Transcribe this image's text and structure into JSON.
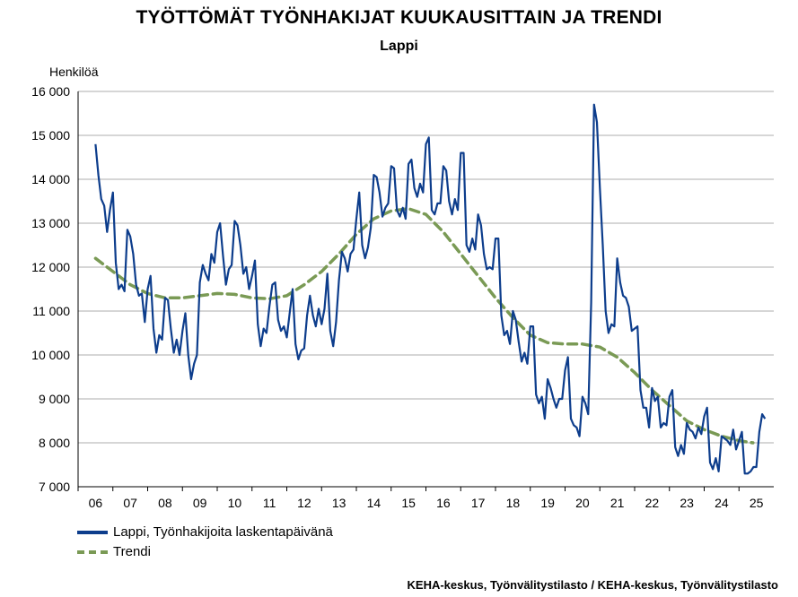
{
  "colors": {
    "series": "#0d3d8c",
    "trend": "#7a9a55",
    "grid": "#c8c8c8",
    "axis": "#000000"
  },
  "chart_data": {
    "type": "line",
    "title": "TYÖTTÖMÄT TYÖNHAKIJAT KUUKAUSITTAIN JA TRENDI",
    "subtitle": "Lappi",
    "ylabel": "Henkilöä",
    "xlabel": "",
    "ylim": [
      7000,
      16000
    ],
    "y_ticks": [
      7000,
      8000,
      9000,
      10000,
      11000,
      12000,
      13000,
      14000,
      15000,
      16000
    ],
    "y_tick_labels": [
      "7 000",
      "8 000",
      "9 000",
      "10 000",
      "11 000",
      "12 000",
      "13 000",
      "14 000",
      "15 000",
      "16 000"
    ],
    "x_tick_labels": [
      "06",
      "07",
      "08",
      "09",
      "10",
      "11",
      "12",
      "13",
      "14",
      "15",
      "16",
      "17",
      "18",
      "19",
      "20",
      "21",
      "22",
      "23",
      "24",
      "25"
    ],
    "grid": "horizontal",
    "legend_position": "bottom-left",
    "series": [
      {
        "name": "Lappi, Työnhakijoita laskentapäivänä",
        "start_year": 2006,
        "start_month": 1,
        "values": [
          14800,
          14100,
          13550,
          13400,
          12800,
          13300,
          13700,
          12100,
          11500,
          11600,
          11450,
          12850,
          12700,
          12300,
          11600,
          11350,
          11400,
          10750,
          11500,
          11800,
          10600,
          10050,
          10450,
          10350,
          11300,
          11250,
          10600,
          10050,
          10350,
          10000,
          10550,
          10950,
          10000,
          9450,
          9800,
          10000,
          11650,
          12050,
          11850,
          11700,
          12300,
          12100,
          12800,
          13000,
          12250,
          11600,
          11950,
          12050,
          13050,
          12950,
          12500,
          11850,
          12000,
          11500,
          11800,
          12150,
          10700,
          10200,
          10600,
          10500,
          11100,
          11600,
          11650,
          10800,
          10550,
          10650,
          10400,
          10950,
          11500,
          10250,
          9900,
          10100,
          10150,
          10900,
          11350,
          10900,
          10650,
          11050,
          10700,
          11050,
          11850,
          10550,
          10200,
          10750,
          11700,
          12350,
          12200,
          11900,
          12300,
          12400,
          13100,
          13700,
          12500,
          12200,
          12450,
          12900,
          14100,
          14050,
          13700,
          13150,
          13350,
          13450,
          14300,
          14250,
          13300,
          13150,
          13350,
          13100,
          14350,
          14450,
          13800,
          13600,
          13900,
          13700,
          14800,
          14950,
          13300,
          13200,
          13450,
          13450,
          14300,
          14200,
          13500,
          13200,
          13550,
          13300,
          14600,
          14600,
          12500,
          12350,
          12650,
          12400,
          13200,
          12950,
          12300,
          11950,
          12000,
          11950,
          12650,
          12650,
          10900,
          10450,
          10550,
          10250,
          11000,
          10800,
          10300,
          9850,
          10050,
          9800,
          10650,
          10650,
          9100,
          8900,
          9050,
          8550,
          9450,
          9250,
          9000,
          8800,
          9000,
          9000,
          9650,
          9950,
          8550,
          8400,
          8350,
          8150,
          9050,
          8900,
          8650,
          11200,
          15700,
          15300,
          13800,
          12500,
          11000,
          10500,
          10700,
          10650,
          12200,
          11650,
          11350,
          11300,
          11100,
          10550,
          10600,
          10650,
          9200,
          8800,
          8800,
          8350,
          9250,
          8950,
          9050,
          8350,
          8450,
          8400,
          9050,
          9200,
          7900,
          7700,
          7950,
          7750,
          8450,
          8300,
          8250,
          8100,
          8350,
          8200,
          8600,
          8800,
          7550,
          7400,
          7650,
          7350,
          8150,
          8100,
          8050,
          7950,
          8300,
          7850,
          8050,
          8250,
          7300,
          7300,
          7350,
          7450,
          7450,
          8250,
          8650,
          8550
        ]
      },
      {
        "name": "Trendi",
        "points": [
          [
            2006.0,
            12200
          ],
          [
            2006.5,
            11900
          ],
          [
            2007.0,
            11600
          ],
          [
            2007.5,
            11400
          ],
          [
            2008.0,
            11300
          ],
          [
            2008.5,
            11300
          ],
          [
            2009.0,
            11350
          ],
          [
            2009.5,
            11400
          ],
          [
            2010.0,
            11380
          ],
          [
            2010.5,
            11300
          ],
          [
            2011.0,
            11280
          ],
          [
            2011.5,
            11350
          ],
          [
            2012.0,
            11600
          ],
          [
            2012.5,
            11900
          ],
          [
            2013.0,
            12300
          ],
          [
            2013.5,
            12750
          ],
          [
            2014.0,
            13100
          ],
          [
            2014.5,
            13280
          ],
          [
            2015.0,
            13330
          ],
          [
            2015.5,
            13200
          ],
          [
            2016.0,
            12800
          ],
          [
            2016.5,
            12300
          ],
          [
            2017.0,
            11800
          ],
          [
            2017.5,
            11300
          ],
          [
            2018.0,
            10850
          ],
          [
            2018.5,
            10450
          ],
          [
            2019.0,
            10280
          ],
          [
            2019.5,
            10250
          ],
          [
            2020.0,
            10250
          ],
          [
            2020.5,
            10180
          ],
          [
            2021.0,
            9950
          ],
          [
            2021.5,
            9600
          ],
          [
            2022.0,
            9200
          ],
          [
            2022.5,
            8850
          ],
          [
            2023.0,
            8500
          ],
          [
            2023.5,
            8300
          ],
          [
            2024.0,
            8150
          ],
          [
            2024.5,
            8050
          ],
          [
            2024.9,
            8000
          ]
        ]
      }
    ],
    "source": "KEHA-keskus, Työnvälitystilasto / KEHA-keskus, Työnvälitystilasto"
  }
}
